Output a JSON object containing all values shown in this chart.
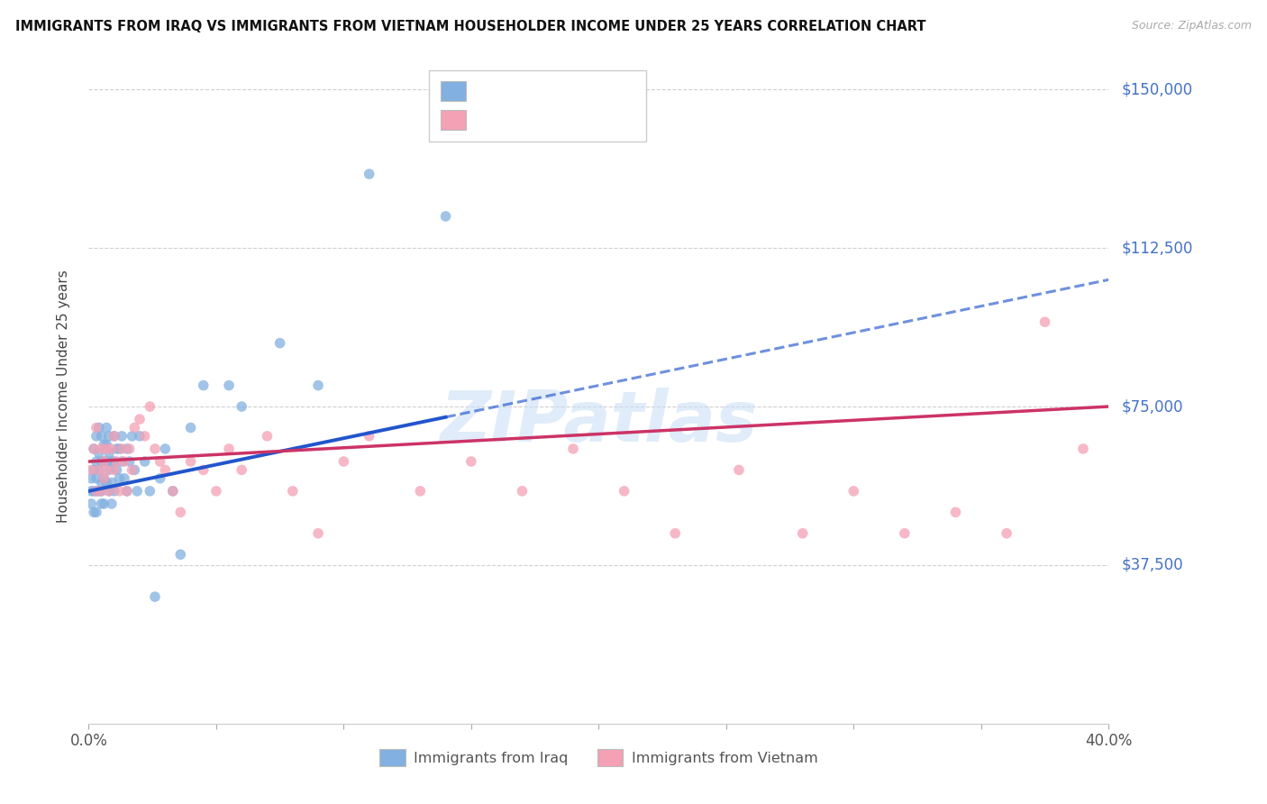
{
  "title": "IMMIGRANTS FROM IRAQ VS IMMIGRANTS FROM VIETNAM HOUSEHOLDER INCOME UNDER 25 YEARS CORRELATION CHART",
  "source": "Source: ZipAtlas.com",
  "ylabel": "Householder Income Under 25 years",
  "yticks": [
    0,
    37500,
    75000,
    112500,
    150000
  ],
  "ytick_labels": [
    "",
    "$37,500",
    "$75,000",
    "$112,500",
    "$150,000"
  ],
  "xlim": [
    0.0,
    0.4
  ],
  "ylim": [
    0,
    155000
  ],
  "iraq_color": "#82b0e0",
  "vietnam_color": "#f4a0b5",
  "trend_iraq_color": "#2255cc",
  "trend_vietnam_color": "#cc3366",
  "watermark": "ZIPatlas",
  "right_label_color": "#4472c4",
  "legend_r_color": "#4472c4",
  "legend_n_color": "#4472c4",
  "iraq_x": [
    0.001,
    0.001,
    0.001,
    0.002,
    0.002,
    0.002,
    0.002,
    0.003,
    0.003,
    0.003,
    0.003,
    0.003,
    0.004,
    0.004,
    0.004,
    0.004,
    0.005,
    0.005,
    0.005,
    0.005,
    0.005,
    0.006,
    0.006,
    0.006,
    0.006,
    0.007,
    0.007,
    0.007,
    0.007,
    0.008,
    0.008,
    0.008,
    0.008,
    0.009,
    0.009,
    0.009,
    0.01,
    0.01,
    0.01,
    0.011,
    0.011,
    0.012,
    0.012,
    0.013,
    0.013,
    0.014,
    0.015,
    0.015,
    0.016,
    0.017,
    0.018,
    0.019,
    0.02,
    0.022,
    0.024,
    0.026,
    0.028,
    0.03,
    0.033,
    0.036,
    0.04,
    0.045,
    0.055,
    0.06,
    0.075,
    0.09,
    0.11,
    0.14
  ],
  "iraq_y": [
    55000,
    58000,
    52000,
    60000,
    55000,
    65000,
    50000,
    62000,
    55000,
    68000,
    50000,
    58000,
    60000,
    64000,
    55000,
    70000,
    52000,
    57000,
    62000,
    55000,
    68000,
    52000,
    58000,
    62000,
    66000,
    57000,
    62000,
    66000,
    70000,
    55000,
    60000,
    64000,
    68000,
    52000,
    57000,
    62000,
    55000,
    62000,
    68000,
    60000,
    65000,
    58000,
    65000,
    62000,
    68000,
    58000,
    55000,
    65000,
    62000,
    68000,
    60000,
    55000,
    68000,
    62000,
    55000,
    30000,
    58000,
    65000,
    55000,
    40000,
    70000,
    80000,
    80000,
    75000,
    90000,
    80000,
    130000,
    120000
  ],
  "vietnam_x": [
    0.001,
    0.002,
    0.003,
    0.003,
    0.004,
    0.005,
    0.005,
    0.006,
    0.006,
    0.007,
    0.007,
    0.008,
    0.009,
    0.01,
    0.01,
    0.011,
    0.012,
    0.013,
    0.014,
    0.015,
    0.016,
    0.017,
    0.018,
    0.02,
    0.022,
    0.024,
    0.026,
    0.028,
    0.03,
    0.033,
    0.036,
    0.04,
    0.045,
    0.05,
    0.055,
    0.06,
    0.07,
    0.08,
    0.09,
    0.1,
    0.11,
    0.13,
    0.15,
    0.17,
    0.19,
    0.21,
    0.23,
    0.255,
    0.28,
    0.3,
    0.32,
    0.34,
    0.36,
    0.375,
    0.39
  ],
  "vietnam_y": [
    60000,
    65000,
    55000,
    70000,
    60000,
    55000,
    65000,
    62000,
    58000,
    65000,
    60000,
    55000,
    65000,
    60000,
    68000,
    62000,
    55000,
    65000,
    62000,
    55000,
    65000,
    60000,
    70000,
    72000,
    68000,
    75000,
    65000,
    62000,
    60000,
    55000,
    50000,
    62000,
    60000,
    55000,
    65000,
    60000,
    68000,
    55000,
    45000,
    62000,
    68000,
    55000,
    62000,
    55000,
    65000,
    55000,
    45000,
    60000,
    45000,
    55000,
    45000,
    50000,
    45000,
    95000,
    65000
  ],
  "iraq_trend_x0": 0.0,
  "iraq_trend_x_solid_end": 0.14,
  "iraq_trend_x1": 0.4,
  "iraq_trend_y0": 55000,
  "iraq_trend_y1": 105000,
  "vietnam_trend_x0": 0.0,
  "vietnam_trend_x1": 0.4,
  "vietnam_trend_y0": 62000,
  "vietnam_trend_y1": 75000
}
